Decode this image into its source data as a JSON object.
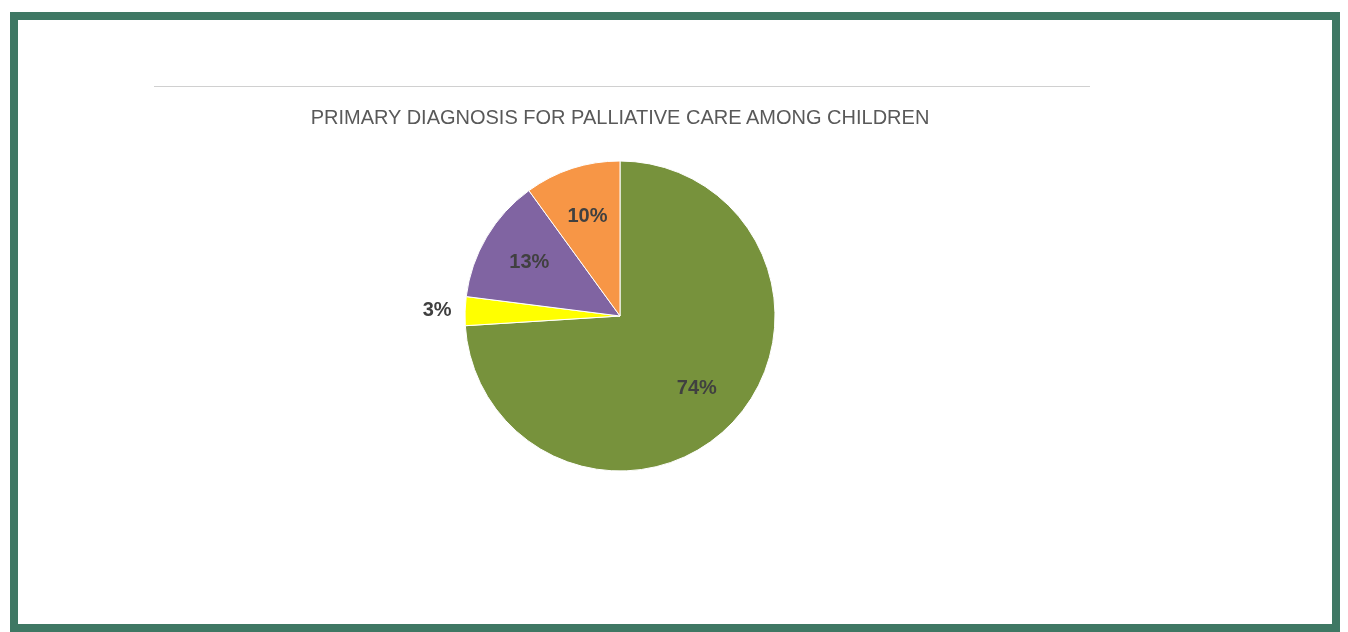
{
  "chart_data": {
    "type": "pie",
    "title": "PRIMARY DIAGNOSIS FOR PALLIATIVE CARE AMONG CHILDREN",
    "categories": [
      null,
      null,
      null,
      null
    ],
    "values": [
      74,
      3,
      13,
      10
    ],
    "colors": [
      "#77923c",
      "#ffff00",
      "#8064a2",
      "#f79646"
    ],
    "value_labels": [
      "74%",
      "3%",
      "13%",
      "10%"
    ]
  }
}
